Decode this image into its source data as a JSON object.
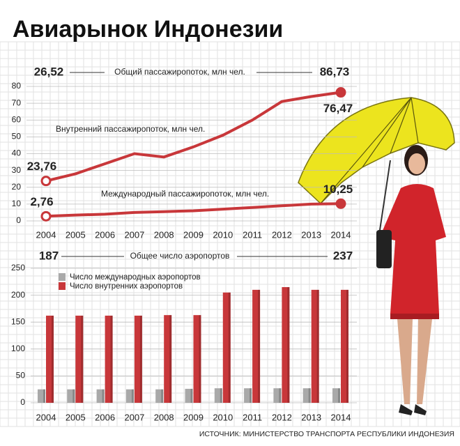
{
  "chart_data": [
    {
      "type": "line",
      "title": "Авиарынок Индонезии",
      "categories": [
        "2004",
        "2005",
        "2006",
        "2007",
        "2008",
        "2009",
        "2010",
        "2011",
        "2012",
        "2013",
        "2014"
      ],
      "series": [
        {
          "name": "Внутренний пассажиропоток, млн чел.",
          "color": "#c8373a",
          "values": [
            23.76,
            28,
            34,
            40,
            38,
            44,
            51,
            60,
            71,
            74,
            76.47
          ],
          "value_labels": [
            "23,76",
            null,
            null,
            null,
            null,
            null,
            null,
            null,
            null,
            null,
            "76,47"
          ]
        },
        {
          "name": "Международный пассажиропоток, млн чел.",
          "color": "#c8373a",
          "values": [
            2.76,
            3.5,
            4,
            5,
            5.5,
            6,
            7,
            8,
            9,
            10,
            10.25
          ],
          "value_labels": [
            "2,76",
            null,
            null,
            null,
            null,
            null,
            null,
            null,
            null,
            null,
            "10,25"
          ]
        }
      ],
      "annotations": [
        {
          "text": "26,52"
        },
        {
          "text": "Общий пассажиропоток, млн чел."
        },
        {
          "text": "86,73"
        }
      ],
      "ylim": [
        0,
        80
      ],
      "yticks": [
        0,
        10,
        20,
        30,
        40,
        50,
        60,
        70,
        80
      ],
      "grid": true
    },
    {
      "type": "bar",
      "categories": [
        "2004",
        "2005",
        "2006",
        "2007",
        "2008",
        "2009",
        "2010",
        "2011",
        "2012",
        "2013",
        "2014"
      ],
      "series": [
        {
          "name": "Число международных аэропортов",
          "color": "#a9a9a9",
          "values": [
            25,
            25,
            25,
            25,
            25,
            26,
            27,
            27,
            27,
            27,
            27
          ]
        },
        {
          "name": "Число внутренних аэропортов",
          "color": "#c8373a",
          "values": [
            162,
            162,
            162,
            162,
            163,
            163,
            205,
            210,
            215,
            210,
            210
          ]
        }
      ],
      "annotations": [
        {
          "text": "187"
        },
        {
          "text": "Общее число аэропортов"
        },
        {
          "text": "237"
        }
      ],
      "ylim": [
        0,
        250
      ],
      "yticks": [
        0,
        50,
        100,
        150,
        200,
        250
      ],
      "grid": true
    }
  ],
  "source": "ИСТОЧНИК: МИНИСТЕРСТВО ТРАНСПОРТА РЕСПУБЛИКИ ИНДОНЕЗИЯ"
}
